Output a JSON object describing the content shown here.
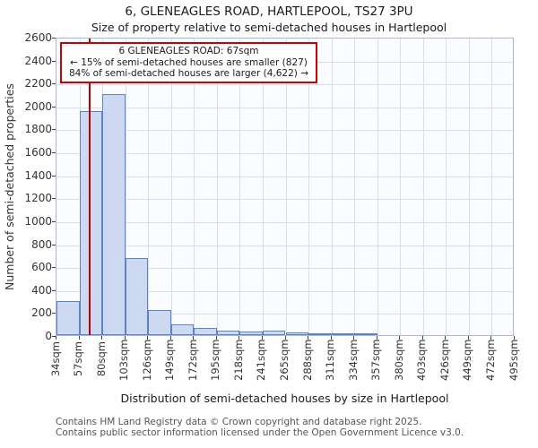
{
  "chart_data": {
    "type": "bar",
    "title": "6, GLENEAGLES ROAD, HARTLEPOOL, TS27 3PU",
    "subtitle": "Size of property relative to semi-detached houses in Hartlepool",
    "xlabel": "Distribution of semi-detached houses by size in Hartlepool",
    "ylabel": "Number of semi-detached properties",
    "categories": [
      "34sqm",
      "57sqm",
      "80sqm",
      "103sqm",
      "126sqm",
      "149sqm",
      "172sqm",
      "195sqm",
      "218sqm",
      "241sqm",
      "265sqm",
      "288sqm",
      "311sqm",
      "334sqm",
      "357sqm",
      "380sqm",
      "403sqm",
      "426sqm",
      "449sqm",
      "472sqm",
      "495sqm"
    ],
    "values": [
      300,
      1950,
      2100,
      670,
      220,
      90,
      60,
      40,
      30,
      40,
      20,
      15,
      5,
      10,
      0,
      0,
      0,
      0,
      0,
      0
    ],
    "ylim": [
      0,
      2600
    ],
    "y_ticks": [
      0,
      200,
      400,
      600,
      800,
      1000,
      1200,
      1400,
      1600,
      1800,
      2000,
      2200,
      2400,
      2600
    ],
    "x_range_sqm": [
      34,
      495
    ],
    "grid": true,
    "legend": null,
    "marker": {
      "value_sqm": 67,
      "color": "#bb0000"
    },
    "annotation": {
      "line1": "6 GLENEAGLES ROAD: 67sqm",
      "line2": "← 15% of semi-detached houses are smaller (827)",
      "line3": "84% of semi-detached houses are larger (4,622) →"
    },
    "colors": {
      "bar_fill": "#ccd9f1",
      "bar_edge": "#5b84c4",
      "grid": "#d6dfef",
      "marker": "#bb0000"
    },
    "footer": {
      "line1": "Contains HM Land Registry data © Crown copyright and database right 2025.",
      "line2": "Contains public sector information licensed under the Open Government Licence v3.0."
    }
  }
}
